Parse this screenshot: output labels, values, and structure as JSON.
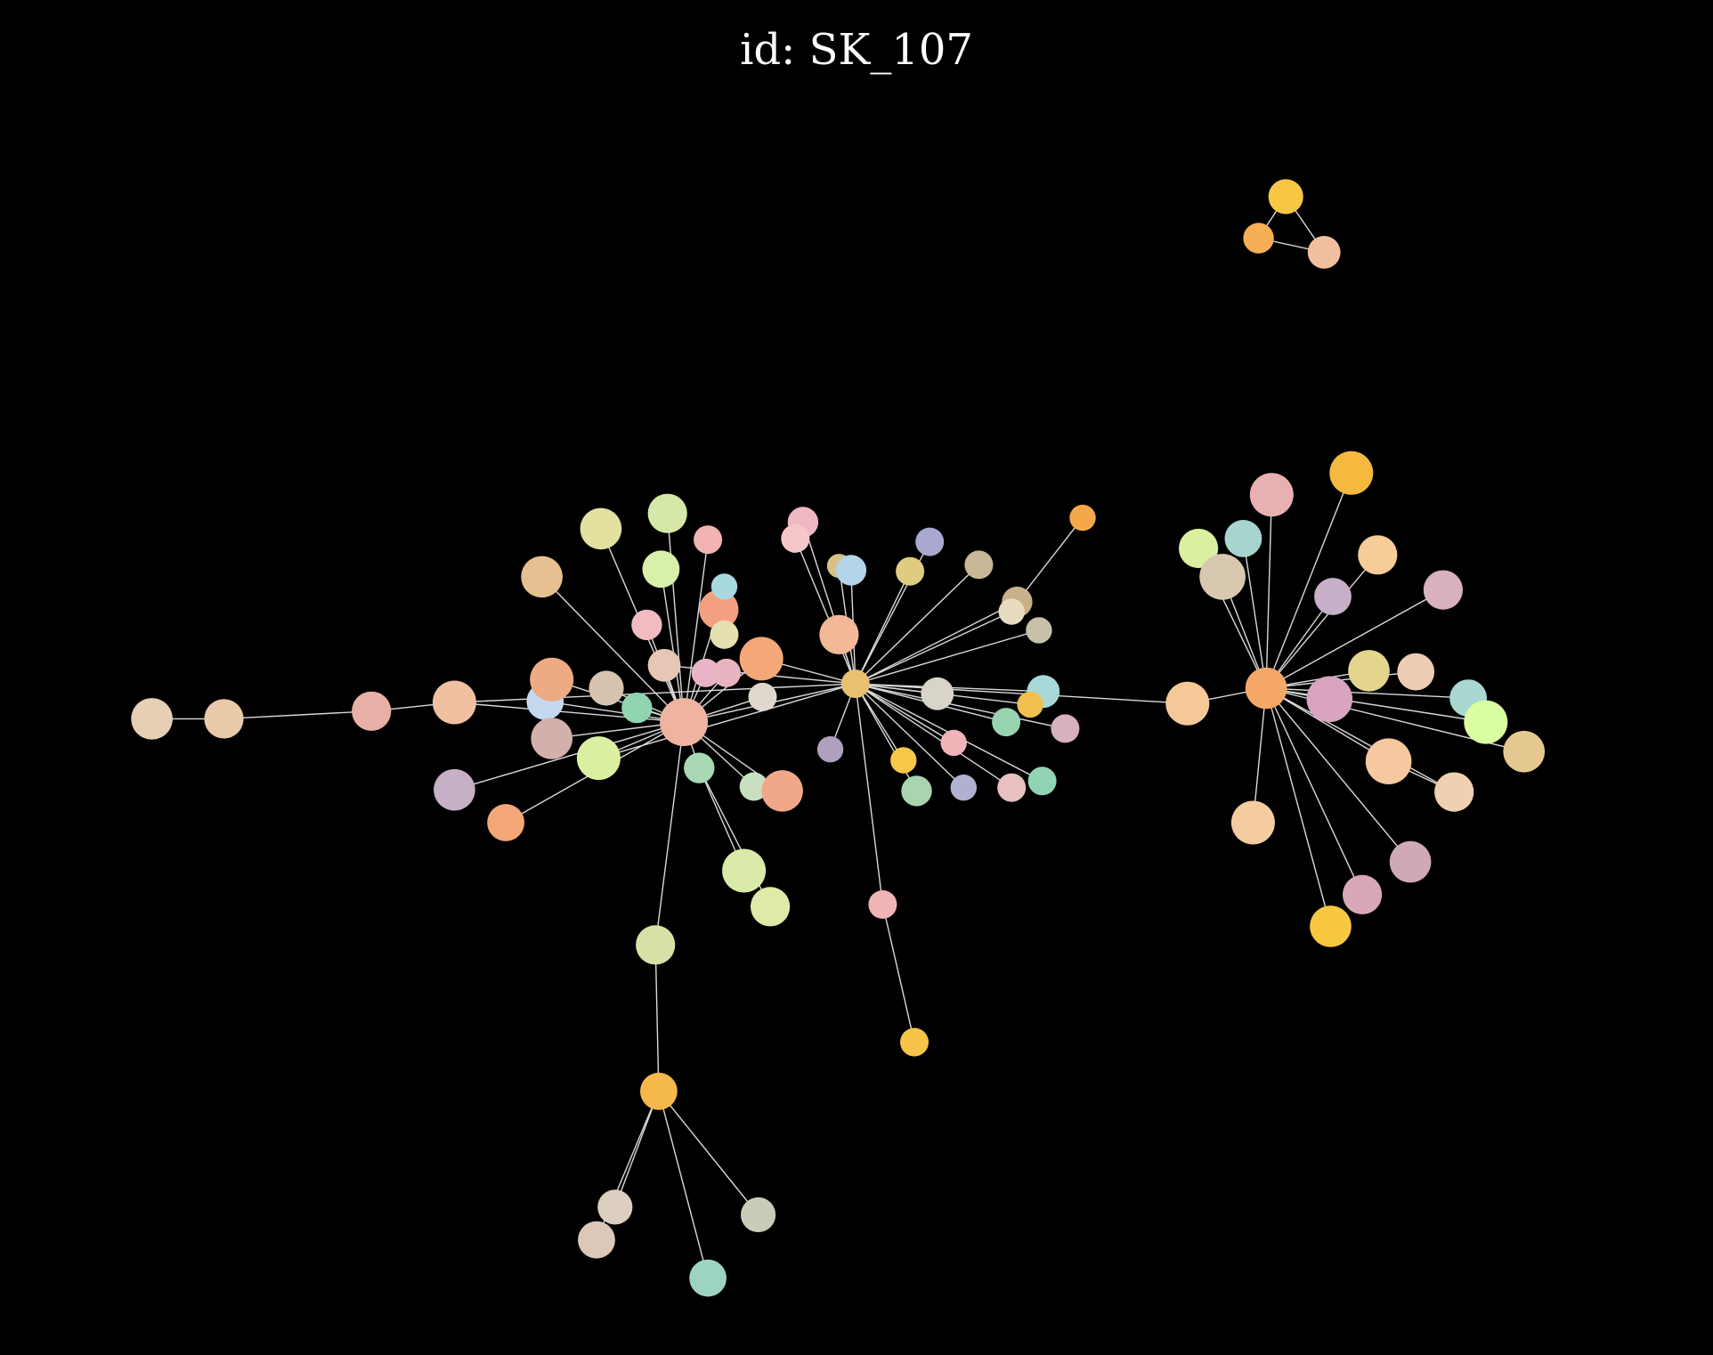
{
  "title": "id: SK_107",
  "graph": {
    "layout": "force-directed",
    "background": "#000000",
    "edge_color": "#d9d9d9"
  }
}
